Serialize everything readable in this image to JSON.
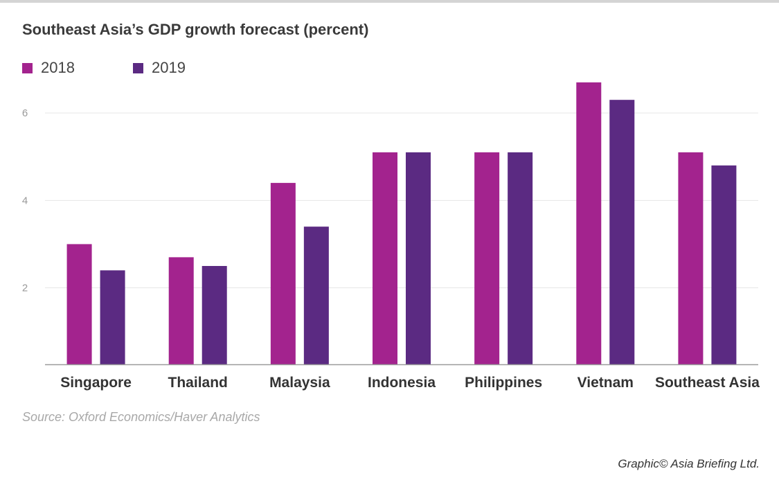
{
  "title": "Southeast Asia’s GDP growth forecast (percent)",
  "source": "Source: Oxford Economics/Haver Analytics",
  "credit": "Graphic© Asia Briefing Ltd.",
  "colors": {
    "series_2018": "#a3238e",
    "series_2019": "#5b2a82",
    "grid": "#e6e6e6",
    "axis": "#9a9a9a"
  },
  "chart_data": {
    "type": "bar",
    "title": "Southeast Asia’s GDP growth forecast (percent)",
    "xlabel": "",
    "ylabel": "",
    "categories": [
      "Singapore",
      "Thailand",
      "Malaysia",
      "Indonesia",
      "Philippines",
      "Vietnam",
      "Southeast Asia"
    ],
    "series": [
      {
        "name": "2018",
        "values": [
          3.0,
          2.7,
          4.4,
          5.1,
          5.1,
          6.7,
          5.1
        ]
      },
      {
        "name": "2019",
        "values": [
          2.4,
          2.5,
          3.4,
          5.1,
          5.1,
          6.3,
          4.8
        ]
      }
    ],
    "yticks": [
      2,
      4,
      6
    ],
    "ylim": [
      0.25,
      7.0
    ],
    "grid": true,
    "legend_position": "top-left"
  }
}
